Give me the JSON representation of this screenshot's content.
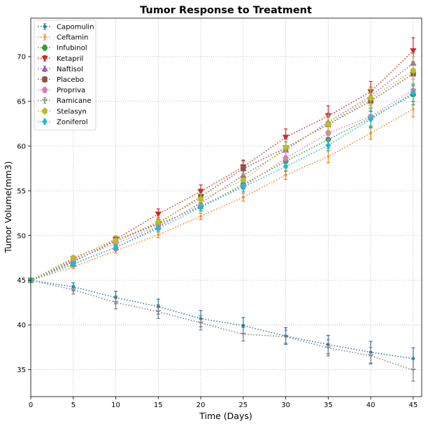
{
  "chart_data": {
    "type": "line",
    "title": "Tumor Response to Treatment",
    "xlabel": "Time (Days)",
    "ylabel": "Tumor Volume(mm3)",
    "xlim": [
      0,
      46
    ],
    "ylim": [
      32,
      74.3
    ],
    "xticks": [
      0,
      5,
      10,
      15,
      20,
      25,
      30,
      35,
      40,
      45
    ],
    "yticks": [
      35,
      40,
      45,
      50,
      55,
      60,
      65,
      70
    ],
    "grid": true,
    "legend_position": "upper-left",
    "x": [
      0,
      5,
      10,
      15,
      20,
      25,
      30,
      35,
      40,
      45
    ],
    "series": [
      {
        "name": "Capomulin",
        "color": "#1f77b4",
        "marker": "point",
        "values": [
          45.0,
          44.27,
          43.08,
          42.06,
          40.72,
          39.94,
          38.77,
          37.82,
          36.96,
          36.24
        ],
        "errors": [
          0,
          0.45,
          0.7,
          0.84,
          0.91,
          0.89,
          0.93,
          1.03,
          1.22,
          1.22
        ]
      },
      {
        "name": "Ceftamin",
        "color": "#ff7f0e",
        "marker": "pixel",
        "values": [
          45.0,
          46.5,
          48.29,
          50.09,
          52.16,
          54.29,
          56.77,
          58.83,
          61.47,
          64.13
        ],
        "errors": [
          0,
          0.16,
          0.24,
          0.33,
          0.36,
          0.44,
          0.49,
          0.69,
          0.71,
          0.88
        ]
      },
      {
        "name": "Infubinol",
        "color": "#2ca02c",
        "marker": "circle",
        "values": [
          45.0,
          47.06,
          49.4,
          51.3,
          53.2,
          55.72,
          58.3,
          60.74,
          63.16,
          65.76
        ],
        "errors": [
          0,
          0.24,
          0.28,
          0.36,
          0.48,
          0.55,
          0.63,
          0.98,
          1.06,
          1.14
        ]
      },
      {
        "name": "Ketapril",
        "color": "#d62728",
        "marker": "triangle-down",
        "values": [
          45.0,
          47.39,
          49.58,
          52.4,
          54.92,
          57.68,
          60.99,
          63.37,
          66.07,
          70.66
        ],
        "errors": [
          0,
          0.26,
          0.36,
          0.58,
          0.73,
          0.76,
          0.93,
          1.13,
          1.16,
          1.45
        ]
      },
      {
        "name": "Naftisol",
        "color": "#9467bd",
        "marker": "triangle-up",
        "values": [
          45.0,
          46.8,
          48.69,
          50.93,
          53.64,
          56.73,
          59.56,
          62.69,
          65.6,
          69.27
        ],
        "errors": [
          0,
          0.2,
          0.37,
          0.53,
          0.61,
          0.67,
          0.9,
          1.01,
          1.01,
          1.12
        ]
      },
      {
        "name": "Placebo",
        "color": "#8c564b",
        "marker": "square",
        "values": [
          45.0,
          47.13,
          49.42,
          51.36,
          54.36,
          57.48,
          59.81,
          62.42,
          65.05,
          68.08
        ],
        "errors": [
          0,
          0.22,
          0.4,
          0.61,
          0.84,
          0.88,
          0.99,
          1.05,
          1.19,
          1.35
        ]
      },
      {
        "name": "Propriva",
        "color": "#e377c2",
        "marker": "pentagon",
        "values": [
          45.0,
          47.25,
          49.1,
          51.07,
          53.35,
          55.5,
          58.63,
          61.45,
          63.32,
          66.25
        ],
        "errors": [
          0,
          0.23,
          0.38,
          0.47,
          0.56,
          0.6,
          0.74,
          0.87,
          1.03,
          1.23
        ]
      },
      {
        "name": "Ramicane",
        "color": "#7f7f7f",
        "marker": "tri-down",
        "values": [
          45.0,
          43.94,
          42.53,
          41.5,
          40.24,
          38.97,
          38.7,
          37.45,
          36.57,
          34.96
        ],
        "errors": [
          0,
          0.48,
          0.72,
          0.77,
          0.79,
          0.75,
          0.72,
          0.89,
          0.92,
          1.23
        ]
      },
      {
        "name": "Stelasyn",
        "color": "#bcbd22",
        "marker": "hexagon",
        "values": [
          45.0,
          47.53,
          49.46,
          51.53,
          54.07,
          56.17,
          59.83,
          62.44,
          65.36,
          68.44
        ],
        "errors": [
          0,
          0.24,
          0.43,
          0.49,
          0.62,
          0.74,
          0.9,
          1.0,
          1.1,
          1.56
        ]
      },
      {
        "name": "Zoniferol",
        "color": "#17becf",
        "marker": "diamond",
        "values": [
          45.0,
          46.85,
          48.69,
          50.78,
          53.17,
          55.43,
          57.71,
          60.09,
          63.0,
          65.96
        ],
        "errors": [
          0,
          0.19,
          0.26,
          0.36,
          0.44,
          0.53,
          0.55,
          0.63,
          0.98,
          1.0
        ]
      }
    ]
  }
}
